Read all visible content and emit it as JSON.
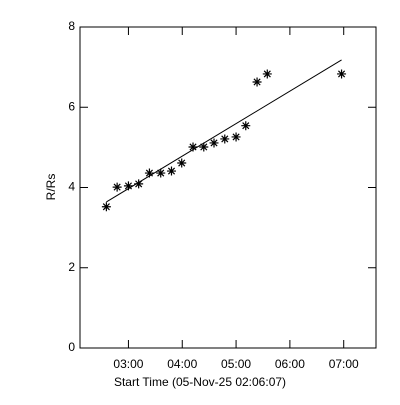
{
  "chart_data": {
    "type": "scatter",
    "x_label": "Start Time (05-Nov-25 02:06:07)",
    "y_label": "R/Rs",
    "x": [
      2.59,
      2.79,
      3.0,
      3.19,
      3.39,
      3.6,
      3.8,
      3.99,
      4.2,
      4.4,
      4.59,
      4.79,
      5.0,
      5.18,
      5.39,
      5.58,
      6.96
    ],
    "values": [
      3.52,
      4.01,
      4.04,
      4.09,
      4.36,
      4.36,
      4.41,
      4.61,
      5.01,
      5.01,
      5.11,
      5.21,
      5.26,
      5.54,
      6.63,
      6.83,
      6.83
    ],
    "color": "#000000",
    "fit": {
      "x": [
        2.59,
        6.96
      ],
      "values": [
        3.64,
        7.18
      ]
    },
    "xlim": [
      2.1,
      7.6
    ],
    "ylim": [
      0,
      8
    ],
    "xticks": [
      {
        "value": 3,
        "label": "03:00"
      },
      {
        "value": 4,
        "label": "04:00"
      },
      {
        "value": 5,
        "label": "05:00"
      },
      {
        "value": 6,
        "label": "06:00"
      },
      {
        "value": 7,
        "label": "07:00"
      }
    ],
    "yticks": [
      0,
      2,
      4,
      6,
      8
    ]
  }
}
